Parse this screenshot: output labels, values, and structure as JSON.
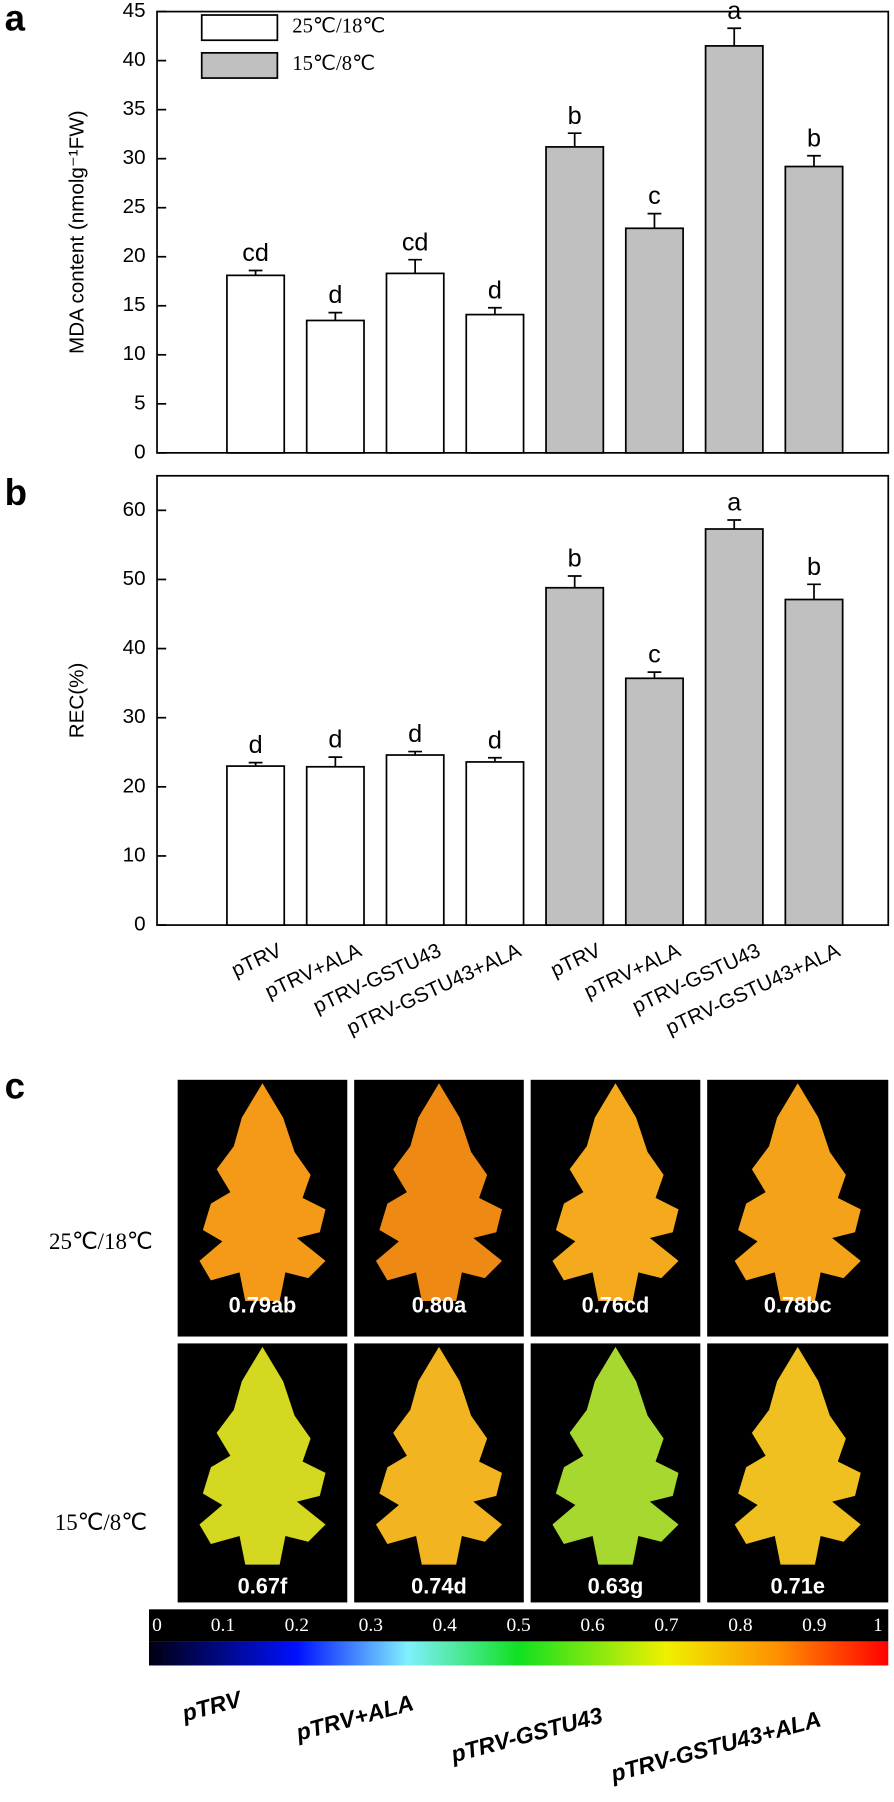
{
  "chart_data": [
    {
      "type": "bar",
      "panel": "a",
      "ylabel": "MDA content (nmolg⁻¹FW)",
      "ylim": [
        0,
        45
      ],
      "yticks": [
        0,
        5,
        10,
        15,
        20,
        25,
        30,
        35,
        40,
        45
      ],
      "legend": "upper left",
      "series": [
        {
          "name": "25℃/18℃",
          "color": "#ffffff",
          "values": [
            18.1,
            13.5,
            18.3,
            14.1,
            null,
            null,
            null,
            null
          ],
          "errors": [
            0.5,
            0.8,
            1.4,
            0.7,
            null,
            null,
            null,
            null
          ]
        },
        {
          "name": "15℃/8℃",
          "color": "#c0c0c0",
          "values": [
            null,
            null,
            null,
            null,
            31.2,
            22.9,
            41.5,
            29.2
          ],
          "errors": [
            null,
            null,
            null,
            null,
            1.4,
            1.5,
            1.8,
            1.1
          ]
        }
      ],
      "annotations": [
        "cd",
        "d",
        "cd",
        "d",
        "b",
        "c",
        "a",
        "b"
      ]
    },
    {
      "type": "bar",
      "panel": "b",
      "ylabel": "REC(%)",
      "ylim": [
        0,
        65
      ],
      "yticks": [
        0,
        10,
        20,
        30,
        40,
        50,
        60
      ],
      "categories": [
        "pTRV",
        "pTRV+ALA",
        "pTRV-GSTU43",
        "pTRV-GSTU43+ALA",
        "pTRV",
        "pTRV+ALA",
        "pTRV-GSTU43",
        "pTRV-GSTU43+ALA"
      ],
      "series": [
        {
          "color": "#ffffff",
          "values": [
            23.0,
            22.9,
            24.6,
            23.6,
            null,
            null,
            null,
            null
          ],
          "errors": [
            0.5,
            1.4,
            0.5,
            0.6,
            null,
            null,
            null,
            null
          ]
        },
        {
          "color": "#c0c0c0",
          "values": [
            null,
            null,
            null,
            null,
            48.8,
            35.7,
            57.3,
            47.1
          ],
          "errors": [
            null,
            null,
            null,
            null,
            1.7,
            0.9,
            1.3,
            2.2
          ]
        }
      ],
      "annotations": [
        "d",
        "d",
        "d",
        "d",
        "b",
        "c",
        "a",
        "b"
      ]
    }
  ],
  "panel_c": {
    "panel": "c",
    "rows": [
      {
        "label": "25℃/18℃",
        "values": [
          "0.79ab",
          "0.80a",
          "0.76cd",
          "0.78bc"
        ]
      },
      {
        "label": "15℃/8℃",
        "values": [
          "0.67f",
          "0.74d",
          "0.63g",
          "0.71e"
        ]
      }
    ],
    "colorbar_ticks": [
      0,
      0.1,
      0.2,
      0.3,
      0.4,
      0.5,
      0.6,
      0.7,
      0.8,
      0.9,
      1
    ],
    "columns": [
      "pTRV",
      "pTRV+ALA",
      "pTRV-GSTU43",
      "pTRV-GSTU43+ALA"
    ]
  }
}
